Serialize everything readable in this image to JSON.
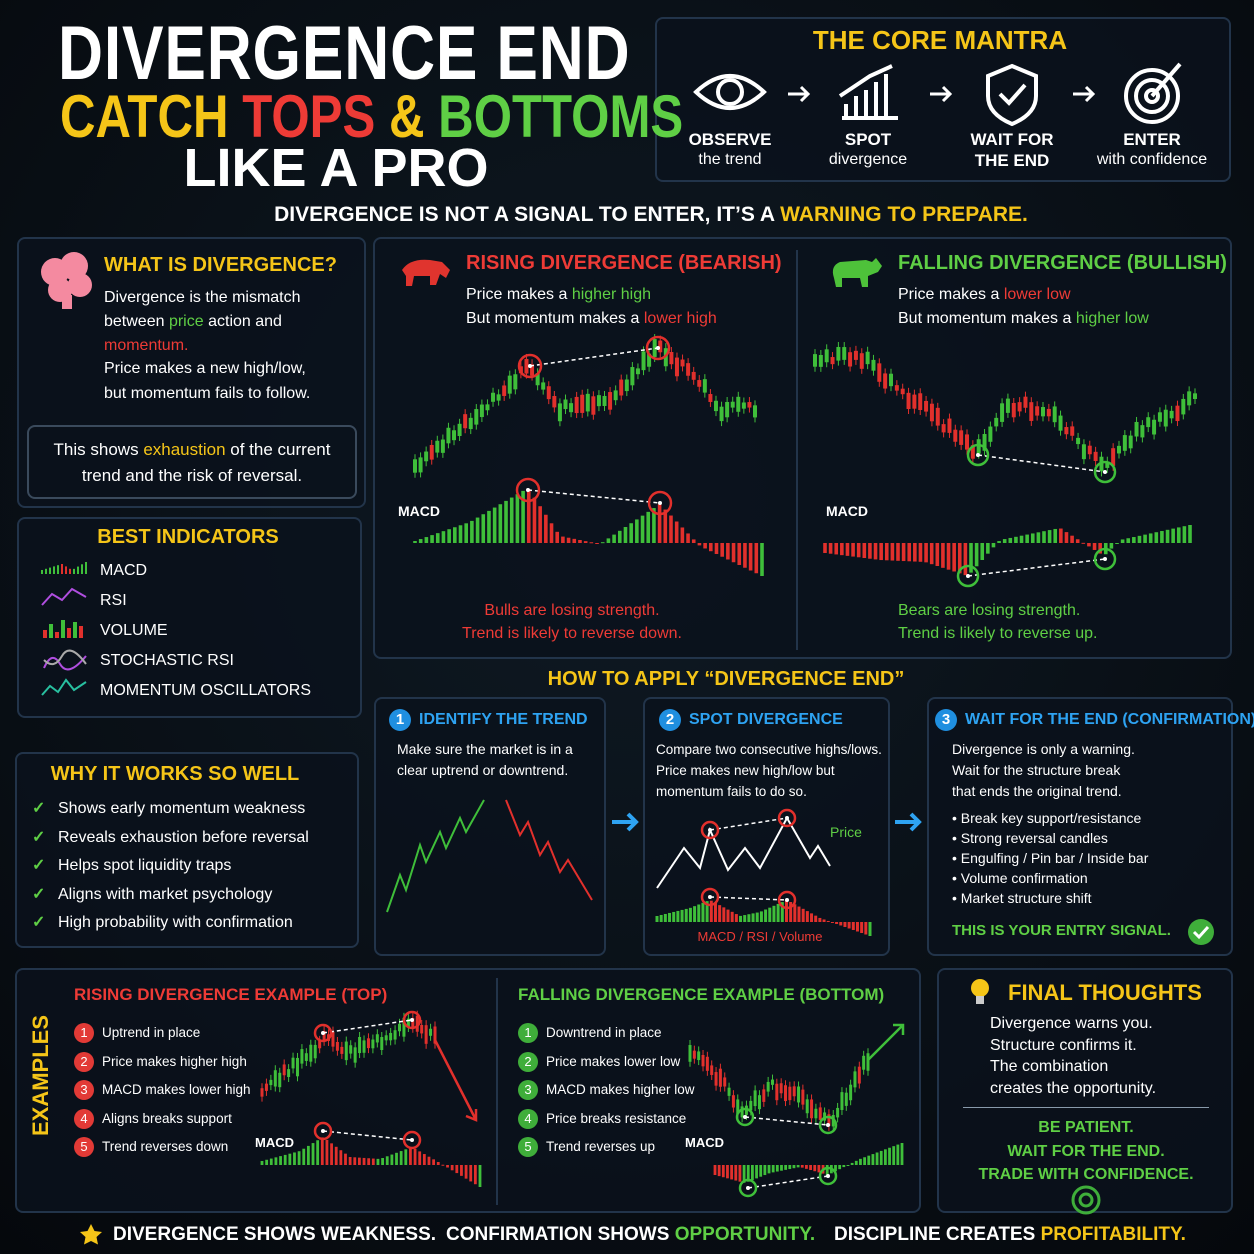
{
  "title": {
    "line1": "DIVERGENCE END",
    "line2": [
      "CATCH",
      "TOPS",
      "&",
      "BOTTOMS"
    ],
    "line3": "LIKE A PRO"
  },
  "mantra": {
    "title": "THE CORE MANTRA",
    "steps": [
      {
        "top": "OBSERVE",
        "bottom": "the trend"
      },
      {
        "top": "SPOT",
        "bottom": "divergence"
      },
      {
        "top": "WAIT FOR",
        "bottom": "THE END"
      },
      {
        "top": "ENTER",
        "bottom": "with confidence"
      }
    ]
  },
  "tagline": [
    "DIVERGENCE IS NOT A SIGNAL TO ENTER, IT’S A",
    "WARNING TO PREPARE."
  ],
  "what": {
    "title": "WHAT IS DIVERGENCE?",
    "p1": [
      "Divergence is the mismatch between",
      "price",
      "action and",
      "momentum."
    ],
    "p2": [
      "Price makes a new high/low,",
      "but momentum fails to follow."
    ],
    "box": [
      "This shows",
      "exhaustion",
      "of the current",
      "trend and the risk of reversal."
    ]
  },
  "best": {
    "title": "BEST INDICATORS",
    "items": [
      "MACD",
      "RSI",
      "VOLUME",
      "STOCHASTIC RSI",
      "MOMENTUM OSCILLATORS"
    ]
  },
  "why": {
    "title": "WHY IT WORKS SO WELL",
    "items": [
      "Shows early momentum weakness",
      "Reveals exhaustion before reversal",
      "Helps spot liquidity traps",
      "Aligns with market psychology",
      "High probability with confirmation"
    ]
  },
  "rising": {
    "title": "RISING DIVERGENCE (BEARISH)",
    "line1": [
      "Price makes a",
      "higher high"
    ],
    "line2": [
      "But momentum makes a",
      "lower high"
    ],
    "macd": "MACD",
    "foot": [
      "Bulls are losing strength.",
      "Trend is likely to reverse down."
    ]
  },
  "falling": {
    "title": "FALLING DIVERGENCE (BULLISH)",
    "line1": [
      "Price makes a",
      "lower low"
    ],
    "line2": [
      "But momentum makes a",
      "higher low"
    ],
    "macd": "MACD",
    "foot": [
      "Bears are losing strength.",
      "Trend is likely to reverse up."
    ]
  },
  "apply": {
    "title": "HOW TO APPLY “DIVERGENCE END”",
    "steps": [
      {
        "num": "1",
        "title": "IDENTIFY THE TREND",
        "text": [
          "Make sure the market is in a",
          "clear uptrend or downtrend."
        ]
      },
      {
        "num": "2",
        "title": "SPOT DIVERGENCE",
        "text": [
          "Compare two consecutive highs/lows.",
          "Price makes new high/low but",
          "momentum fails to do so."
        ],
        "price": "Price",
        "indicators": "MACD / RSI / Volume"
      },
      {
        "num": "3",
        "title": "WAIT FOR THE END (CONFIRMATION)",
        "text": [
          "Divergence is only a warning.",
          "Wait for the structure break",
          "that ends the original trend."
        ],
        "bullets": [
          "Break key support/resistance",
          "Strong reversal candles",
          "Engulfing / Pin bar / Inside bar",
          "Volume confirmation",
          "Market structure shift"
        ],
        "signal": "THIS IS YOUR ENTRY SIGNAL."
      }
    ]
  },
  "examples": {
    "label": "EXAMPLES",
    "rising": {
      "title": "RISING DIVERGENCE EXAMPLE (TOP)",
      "items": [
        {
          "n": "1",
          "t": "Uptrend in place"
        },
        {
          "n": "2",
          "t": "Price makes higher high"
        },
        {
          "n": "3",
          "t": "MACD makes lower high"
        },
        {
          "n": "4",
          "t": "Aligns breaks support"
        },
        {
          "n": "5",
          "t": "Trend reverses down"
        }
      ],
      "macd": "MACD"
    },
    "falling": {
      "title": "FALLING DIVERGENCE EXAMPLE (BOTTOM)",
      "items": [
        {
          "n": "1",
          "t": "Downtrend in place"
        },
        {
          "n": "2",
          "t": "Price makes lower low"
        },
        {
          "n": "3",
          "t": "MACD makes higher low"
        },
        {
          "n": "4",
          "t": "Price breaks resistance"
        },
        {
          "n": "5",
          "t": "Trend reverses up"
        }
      ],
      "macd": "MACD"
    }
  },
  "final": {
    "title": "FINAL THOUGHTS",
    "text": [
      "Divergence warns you.",
      "Structure confirms it.",
      "The combination",
      "creates the opportunity."
    ],
    "closing": [
      "BE PATIENT.",
      "WAIT FOR THE END.",
      "TRADE WITH CONFIDENCE."
    ]
  },
  "footer": [
    {
      "a": "DIVERGENCE SHOWS WEAKNESS."
    },
    {
      "a": "CONFIRMATION SHOWS",
      "b": "OPPORTUNITY."
    },
    {
      "a": "DISCIPLINE CREATES",
      "b": "PROFITABILITY."
    }
  ]
}
